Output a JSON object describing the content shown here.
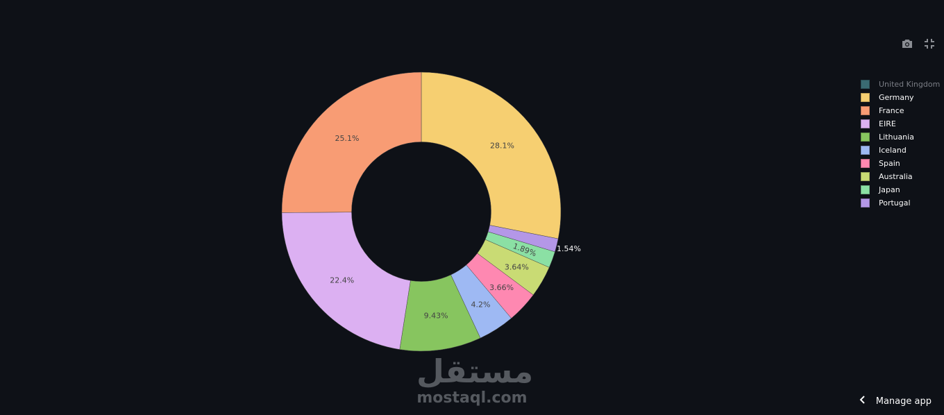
{
  "chart_data": {
    "type": "pie",
    "hole": 0.5,
    "direction": "clockwise",
    "labels": [
      "Germany",
      "Portugal",
      "Japan",
      "Australia",
      "Spain",
      "Iceland",
      "Lithuania",
      "EIRE",
      "France"
    ],
    "values": [
      28.1,
      1.54,
      1.89,
      3.64,
      3.66,
      4.2,
      9.43,
      22.4,
      25.1
    ],
    "text": [
      "28.1%",
      "1.54%",
      "1.89%",
      "3.64%",
      "3.66%",
      "4.2%",
      "9.43%",
      "22.4%",
      "25.1%"
    ],
    "colors": {
      "United Kingdom": "#66C5CC",
      "Germany": "#F6CF71",
      "France": "#F89C74",
      "EIRE": "#DCB0F2",
      "Lithuania": "#87C55F",
      "Iceland": "#9EB9F3",
      "Spain": "#FE88B1",
      "Australia": "#C9DB74",
      "Japan": "#8BE0A4",
      "Portugal": "#B497E7"
    },
    "legend": {
      "placement": "right",
      "entries": [
        "United Kingdom",
        "Germany",
        "France",
        "EIRE",
        "Lithuania",
        "Iceland",
        "Spain",
        "Australia",
        "Japan",
        "Portugal"
      ],
      "hidden": [
        "United Kingdom"
      ]
    }
  },
  "toolbar": {
    "icons": [
      "camera-icon",
      "exit-fullscreen-icon"
    ]
  },
  "watermark": {
    "arabic": "مستقل",
    "latin": "mostaql.com"
  },
  "footer": {
    "manage_app": "Manage app"
  },
  "theme": {
    "background": "#0e1117"
  }
}
